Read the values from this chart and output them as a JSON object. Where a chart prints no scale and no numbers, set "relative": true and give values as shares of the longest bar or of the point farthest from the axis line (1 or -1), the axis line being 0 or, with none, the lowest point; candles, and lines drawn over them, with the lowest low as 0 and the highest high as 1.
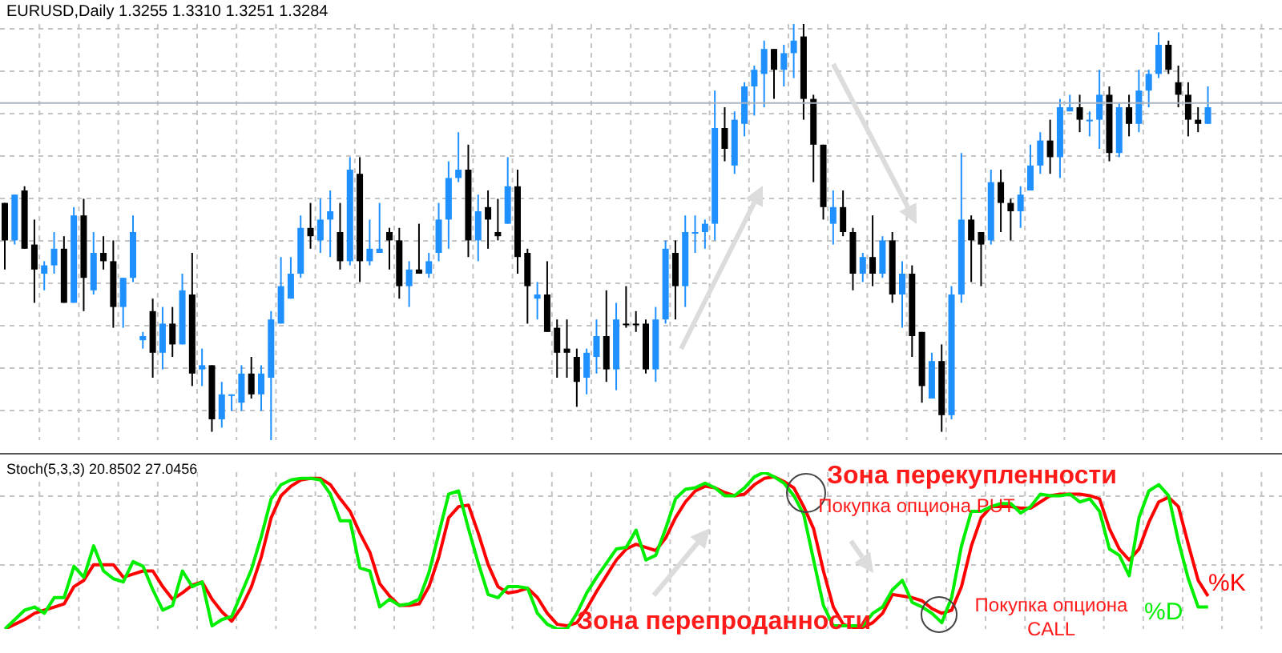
{
  "chart_data": [
    {
      "type": "candlestick",
      "title": "EURUSD,Daily 1.3255 1.3310 1.3251 1.3284",
      "relative": true,
      "grid": true,
      "categories": [
        null,
        null,
        null,
        null,
        null,
        null,
        null,
        null,
        null,
        null,
        null,
        null,
        null,
        null,
        null,
        null,
        null,
        null,
        null,
        null,
        null,
        null,
        null,
        null,
        null,
        null,
        null,
        null,
        null,
        null,
        null,
        null,
        null,
        null,
        null,
        null,
        null,
        null,
        null,
        null,
        null,
        null,
        null,
        null,
        null,
        null,
        null,
        null,
        null,
        null,
        null,
        null,
        null,
        null,
        null,
        null,
        null,
        null,
        null,
        null,
        null,
        null,
        null,
        null,
        null,
        null,
        null,
        null,
        null,
        null,
        null,
        null,
        null,
        null,
        null,
        null,
        null,
        null,
        null,
        null,
        null,
        null,
        null,
        null,
        null,
        null,
        null,
        null,
        null,
        null,
        null,
        null,
        null,
        null,
        null,
        null,
        null,
        null,
        null,
        null,
        null,
        null,
        null,
        null,
        null,
        null,
        null,
        null,
        null,
        null,
        null,
        null,
        null,
        null,
        null,
        null,
        null,
        null,
        null,
        null,
        null,
        null,
        null
      ],
      "ohlc": [
        [
          0.57,
          0.57,
          0.41,
          0.48
        ],
        [
          0.48,
          0.59,
          0.47,
          0.59
        ],
        [
          0.6,
          0.61,
          0.46,
          0.46
        ],
        [
          0.47,
          0.53,
          0.33,
          0.41
        ],
        [
          0.4,
          0.43,
          0.36,
          0.42
        ],
        [
          0.42,
          0.5,
          0.4,
          0.46
        ],
        [
          0.46,
          0.49,
          0.33,
          0.33
        ],
        [
          0.33,
          0.56,
          0.33,
          0.54
        ],
        [
          0.54,
          0.58,
          0.31,
          0.39
        ],
        [
          0.36,
          0.5,
          0.35,
          0.45
        ],
        [
          0.45,
          0.49,
          0.41,
          0.43
        ],
        [
          0.43,
          0.48,
          0.27,
          0.32
        ],
        [
          0.32,
          0.39,
          0.27,
          0.39
        ],
        [
          0.39,
          0.54,
          0.38,
          0.5
        ],
        [
          0.24,
          0.26,
          0.22,
          0.25
        ],
        [
          0.31,
          0.34,
          0.15,
          0.21
        ],
        [
          0.21,
          0.32,
          0.17,
          0.28
        ],
        [
          0.28,
          0.32,
          0.2,
          0.23
        ],
        [
          0.23,
          0.4,
          0.23,
          0.36
        ],
        [
          0.35,
          0.45,
          0.13,
          0.16
        ],
        [
          0.17,
          0.22,
          0.13,
          0.18
        ],
        [
          0.18,
          0.18,
          0.02,
          0.05
        ],
        [
          0.05,
          0.14,
          0.03,
          0.11
        ],
        [
          0.11,
          0.11,
          0.07,
          0.11
        ],
        [
          0.09,
          0.18,
          0.07,
          0.16
        ],
        [
          0.16,
          0.2,
          0.1,
          0.11
        ],
        [
          0.11,
          0.18,
          0.07,
          0.16
        ],
        [
          0.15,
          0.31,
          0,
          0.29
        ],
        [
          0.28,
          0.44,
          0.28,
          0.37
        ],
        [
          0.34,
          0.44,
          0.34,
          0.4
        ],
        [
          0.4,
          0.54,
          0.39,
          0.51
        ],
        [
          0.51,
          0.57,
          0.46,
          0.49
        ],
        [
          0.48,
          0.58,
          0.45,
          0.53
        ],
        [
          0.53,
          0.6,
          0.44,
          0.55
        ],
        [
          0.5,
          0.57,
          0.41,
          0.43
        ],
        [
          0.43,
          0.68,
          0.42,
          0.65
        ],
        [
          0.64,
          0.68,
          0.38,
          0.43
        ],
        [
          0.43,
          0.53,
          0.42,
          0.46
        ],
        [
          0.45,
          0.57,
          0.45,
          0.46
        ],
        [
          0.5,
          0.51,
          0.41,
          0.48
        ],
        [
          0.48,
          0.51,
          0.34,
          0.37
        ],
        [
          0.37,
          0.43,
          0.32,
          0.41
        ],
        [
          0.41,
          0.52,
          0.4,
          0.4
        ],
        [
          0.4,
          0.45,
          0.39,
          0.43
        ],
        [
          0.45,
          0.57,
          0.43,
          0.53
        ],
        [
          0.53,
          0.67,
          0.46,
          0.63
        ],
        [
          0.63,
          0.74,
          0.62,
          0.65
        ],
        [
          0.65,
          0.71,
          0.44,
          0.48
        ],
        [
          0.48,
          0.59,
          0.43,
          0.55
        ],
        [
          0.56,
          0.6,
          0.46,
          0.53
        ],
        [
          0.5,
          0.58,
          0.48,
          0.49
        ],
        [
          0.52,
          0.68,
          0.52,
          0.61
        ],
        [
          0.61,
          0.65,
          0.4,
          0.44
        ],
        [
          0.45,
          0.46,
          0.28,
          0.37
        ],
        [
          0.34,
          0.38,
          0.29,
          0.35
        ],
        [
          0.35,
          0.43,
          0.26,
          0.26
        ],
        [
          0.27,
          0.29,
          0.15,
          0.21
        ],
        [
          0.22,
          0.29,
          0.15,
          0.21
        ],
        [
          0.2,
          0.22,
          0.08,
          0.14
        ],
        [
          0.15,
          0.22,
          0.11,
          0.21
        ],
        [
          0.2,
          0.29,
          0.16,
          0.25
        ],
        [
          0.25,
          0.36,
          0.14,
          0.17
        ],
        [
          0.17,
          0.33,
          0.12,
          0.29
        ],
        [
          0.28,
          0.37,
          0.27,
          0.28
        ],
        [
          0.28,
          0.31,
          0.26,
          0.28
        ],
        [
          0.28,
          0.29,
          0.16,
          0.17
        ],
        [
          0.17,
          0.32,
          0.14,
          0.29
        ],
        [
          0.29,
          0.48,
          0.28,
          0.46
        ],
        [
          0.45,
          0.48,
          0.29,
          0.37
        ],
        [
          0.37,
          0.54,
          0.32,
          0.5
        ],
        [
          0.5,
          0.54,
          0.45,
          0.5
        ],
        [
          0.5,
          0.53,
          0.46,
          0.52
        ],
        [
          0.52,
          0.84,
          0.48,
          0.75
        ],
        [
          0.75,
          0.8,
          0.67,
          0.7
        ],
        [
          0.66,
          0.79,
          0.64,
          0.77
        ],
        [
          0.76,
          0.86,
          0.73,
          0.85
        ],
        [
          0.85,
          0.9,
          0.78,
          0.89
        ],
        [
          0.88,
          0.96,
          0.8,
          0.94
        ],
        [
          0.94,
          0.94,
          0.82,
          0.89
        ],
        [
          0.89,
          0.95,
          0.85,
          0.93
        ],
        [
          0.93,
          1,
          0.87,
          0.96
        ],
        [
          0.97,
          1,
          0.77,
          0.82
        ],
        [
          0.82,
          0.83,
          0.62,
          0.71
        ],
        [
          0.71,
          0.71,
          0.53,
          0.56
        ],
        [
          0.52,
          0.6,
          0.47,
          0.56
        ],
        [
          0.56,
          0.6,
          0.49,
          0.5
        ],
        [
          0.5,
          0.51,
          0.36,
          0.4
        ],
        [
          0.4,
          0.45,
          0.38,
          0.44
        ],
        [
          0.44,
          0.54,
          0.37,
          0.4
        ],
        [
          0.4,
          0.49,
          0.39,
          0.48
        ],
        [
          0.48,
          0.5,
          0.33,
          0.35
        ],
        [
          0.35,
          0.43,
          0.27,
          0.4
        ],
        [
          0.4,
          0.42,
          0.2,
          0.25
        ],
        [
          0.26,
          0.26,
          0.09,
          0.13
        ],
        [
          0.1,
          0.21,
          0.1,
          0.19
        ],
        [
          0.19,
          0.23,
          0.02,
          0.06
        ],
        [
          0.06,
          0.37,
          0.05,
          0.35
        ],
        [
          0.35,
          0.69,
          0.33,
          0.53
        ],
        [
          0.53,
          0.54,
          0.38,
          0.48
        ],
        [
          0.5,
          0.5,
          0.37,
          0.47
        ],
        [
          0.48,
          0.65,
          0.47,
          0.62
        ],
        [
          0.62,
          0.65,
          0.5,
          0.57
        ],
        [
          0.57,
          0.58,
          0.48,
          0.55
        ],
        [
          0.55,
          0.61,
          0.51,
          0.59
        ],
        [
          0.6,
          0.71,
          0.6,
          0.66
        ],
        [
          0.66,
          0.74,
          0.64,
          0.72
        ],
        [
          0.72,
          0.77,
          0.64,
          0.68
        ],
        [
          0.68,
          0.82,
          0.63,
          0.8
        ],
        [
          0.79,
          0.83,
          0.79,
          0.8
        ],
        [
          0.8,
          0.83,
          0.74,
          0.77
        ],
        [
          0.77,
          0.79,
          0.73,
          0.77
        ],
        [
          0.77,
          0.89,
          0.7,
          0.83
        ],
        [
          0.83,
          0.85,
          0.67,
          0.69
        ],
        [
          0.69,
          0.81,
          0.68,
          0.8
        ],
        [
          0.8,
          0.83,
          0.73,
          0.76
        ],
        [
          0.76,
          0.89,
          0.74,
          0.84
        ],
        [
          0.84,
          0.89,
          0.8,
          0.88
        ],
        [
          0.88,
          0.98,
          0.87,
          0.95
        ],
        [
          0.95,
          0.96,
          0.88,
          0.89
        ],
        [
          0.86,
          0.9,
          0.8,
          0.83
        ],
        [
          0.83,
          0.86,
          0.73,
          0.77
        ],
        [
          0.77,
          0.8,
          0.74,
          0.76
        ],
        [
          0.76,
          0.85,
          0.76,
          0.8
        ]
      ],
      "colors": [
        "#000000",
        "#1e90ff",
        "#000000",
        "#000000",
        "#1e90ff",
        "#1e90ff",
        "#000000",
        "#1e90ff",
        "#000000",
        "#1e90ff",
        "#000000",
        "#000000",
        "#1e90ff",
        "#1e90ff",
        "#1e90ff",
        "#000000",
        "#1e90ff",
        "#000000",
        "#1e90ff",
        "#000000",
        "#1e90ff",
        "#000000",
        "#1e90ff",
        "#1e90ff",
        "#1e90ff",
        "#000000",
        "#1e90ff",
        "#1e90ff",
        "#1e90ff",
        "#1e90ff",
        "#1e90ff",
        "#000000",
        "#1e90ff",
        "#1e90ff",
        "#000000",
        "#1e90ff",
        "#000000",
        "#1e90ff",
        "#1e90ff",
        "#000000",
        "#000000",
        "#1e90ff",
        "#000000",
        "#1e90ff",
        "#1e90ff",
        "#1e90ff",
        "#1e90ff",
        "#000000",
        "#1e90ff",
        "#000000",
        "#000000",
        "#1e90ff",
        "#000000",
        "#000000",
        "#1e90ff",
        "#000000",
        "#000000",
        "#000000",
        "#000000",
        "#1e90ff",
        "#1e90ff",
        "#000000",
        "#1e90ff",
        "#000000",
        "#000000",
        "#000000",
        "#1e90ff",
        "#1e90ff",
        "#000000",
        "#1e90ff",
        "#1e90ff",
        "#1e90ff",
        "#1e90ff",
        "#000000",
        "#1e90ff",
        "#1e90ff",
        "#1e90ff",
        "#1e90ff",
        "#000000",
        "#1e90ff",
        "#1e90ff",
        "#000000",
        "#000000",
        "#000000",
        "#1e90ff",
        "#000000",
        "#000000",
        "#1e90ff",
        "#000000",
        "#1e90ff",
        "#000000",
        "#1e90ff",
        "#000000",
        "#000000",
        "#1e90ff",
        "#000000",
        "#1e90ff",
        "#1e90ff",
        "#000000",
        "#000000",
        "#1e90ff",
        "#000000",
        "#000000",
        "#1e90ff",
        "#1e90ff",
        "#1e90ff",
        "#000000",
        "#1e90ff",
        "#1e90ff",
        "#000000",
        "#1e90ff",
        "#1e90ff",
        "#000000",
        "#1e90ff",
        "#000000",
        "#1e90ff",
        "#1e90ff",
        "#1e90ff",
        "#000000",
        "#000000",
        "#000000",
        "#000000",
        "#1e90ff"
      ],
      "ref_lines": [
        {
          "axis": "y",
          "value": 0.81,
          "color": "#a9b4bf"
        }
      ]
    },
    {
      "type": "line",
      "title": "Stoch(5,3,3) 20.8502 27.0456",
      "relative": true,
      "grid": true,
      "categories": [
        null,
        null,
        null,
        null,
        null,
        null,
        null,
        null,
        null,
        null,
        null,
        null,
        null,
        null,
        null,
        null,
        null,
        null,
        null,
        null,
        null,
        null,
        null,
        null,
        null,
        null,
        null,
        null,
        null,
        null,
        null,
        null,
        null,
        null,
        null,
        null,
        null,
        null,
        null,
        null,
        null,
        null,
        null,
        null,
        null,
        null,
        null,
        null,
        null,
        null,
        null,
        null,
        null,
        null,
        null,
        null,
        null,
        null,
        null,
        null,
        null,
        null,
        null,
        null,
        null,
        null,
        null,
        null,
        null,
        null,
        null,
        null,
        null,
        null,
        null,
        null,
        null,
        null,
        null,
        null,
        null,
        null,
        null,
        null,
        null,
        null,
        null,
        null,
        null,
        null,
        null,
        null,
        null,
        null,
        null,
        null,
        null,
        null,
        null,
        null,
        null,
        null,
        null,
        null,
        null,
        null,
        null,
        null,
        null,
        null,
        null,
        null,
        null,
        null,
        null,
        null,
        null,
        null,
        null,
        null,
        null,
        null,
        null
      ],
      "series": [
        {
          "name": "%K",
          "color": "#ff0000",
          "values": [
            0,
            0.03,
            0.06,
            0.1,
            0.12,
            0.14,
            0.16,
            0.27,
            0.31,
            0.41,
            0.41,
            0.41,
            0.33,
            0.35,
            0.37,
            0.37,
            0.27,
            0.19,
            0.23,
            0.28,
            0.3,
            0.19,
            0.11,
            0.05,
            0.14,
            0.27,
            0.46,
            0.71,
            0.85,
            0.91,
            0.95,
            0.96,
            0.96,
            0.92,
            0.83,
            0.75,
            0.61,
            0.49,
            0.29,
            0.21,
            0.15,
            0.15,
            0.16,
            0.27,
            0.46,
            0.71,
            0.78,
            0.79,
            0.61,
            0.41,
            0.27,
            0.23,
            0.24,
            0.26,
            0.2,
            0.1,
            0.03,
            0.02,
            0.04,
            0.13,
            0.24,
            0.34,
            0.44,
            0.51,
            0.54,
            0.52,
            0.5,
            0.58,
            0.71,
            0.81,
            0.88,
            0.91,
            0.9,
            0.87,
            0.85,
            0.86,
            0.92,
            0.96,
            0.97,
            0.94,
            0.9,
            0.78,
            0.64,
            0.37,
            0.14,
            0.03,
            0.01,
            0.01,
            0.04,
            0.1,
            0.22,
            0.21,
            0.2,
            0.18,
            0.13,
            0.1,
            0.12,
            0.27,
            0.53,
            0.71,
            0.78,
            0.78,
            0.78,
            0.77,
            0.77,
            0.81,
            0.85,
            0.86,
            0.86,
            0.86,
            0.85,
            0.83,
            0.64,
            0.51,
            0.44,
            0.51,
            0.68,
            0.81,
            0.84,
            0.78,
            0.54,
            0.31,
            0.21
          ]
        },
        {
          "name": "%D",
          "color": "#00ee00",
          "values": [
            0,
            0.06,
            0.12,
            0.14,
            0.1,
            0.2,
            0.2,
            0.4,
            0.33,
            0.53,
            0.37,
            0.32,
            0.3,
            0.43,
            0.4,
            0.25,
            0.12,
            0.15,
            0.37,
            0.27,
            0.3,
            0.02,
            0.06,
            0.08,
            0.23,
            0.38,
            0.59,
            0.83,
            0.92,
            0.95,
            0.96,
            0.96,
            0.95,
            0.86,
            0.69,
            0.69,
            0.39,
            0.37,
            0.14,
            0.19,
            0.15,
            0.16,
            0.19,
            0.36,
            0.61,
            0.86,
            0.88,
            0.64,
            0.42,
            0.22,
            0.2,
            0.27,
            0.27,
            0.26,
            0.1,
            0.03,
            0,
            0,
            0.1,
            0.23,
            0.33,
            0.42,
            0.51,
            0.52,
            0.63,
            0.44,
            0.47,
            0.64,
            0.83,
            0.89,
            0.9,
            0.93,
            0.9,
            0.85,
            0.85,
            0.9,
            0.97,
            1,
            0.97,
            0.93,
            0.85,
            0.73,
            0.44,
            0.15,
            0.02,
            0.02,
            0.02,
            0.02,
            0.1,
            0.14,
            0.25,
            0.31,
            0.17,
            0.14,
            0.1,
            0.04,
            0.2,
            0.53,
            0.75,
            0.75,
            0.78,
            0.8,
            0.8,
            0.74,
            0.78,
            0.86,
            0.85,
            0.85,
            0.86,
            0.81,
            0.83,
            0.75,
            0.51,
            0.47,
            0.34,
            0.71,
            0.88,
            0.92,
            0.85,
            0.56,
            0.32,
            0.14,
            0.14
          ]
        }
      ],
      "annotations": [
        "Зона перекупленности",
        "Зона перепроданности",
        "Покупка опциона PUT",
        "Покупка опциона CALL"
      ]
    }
  ]
}
